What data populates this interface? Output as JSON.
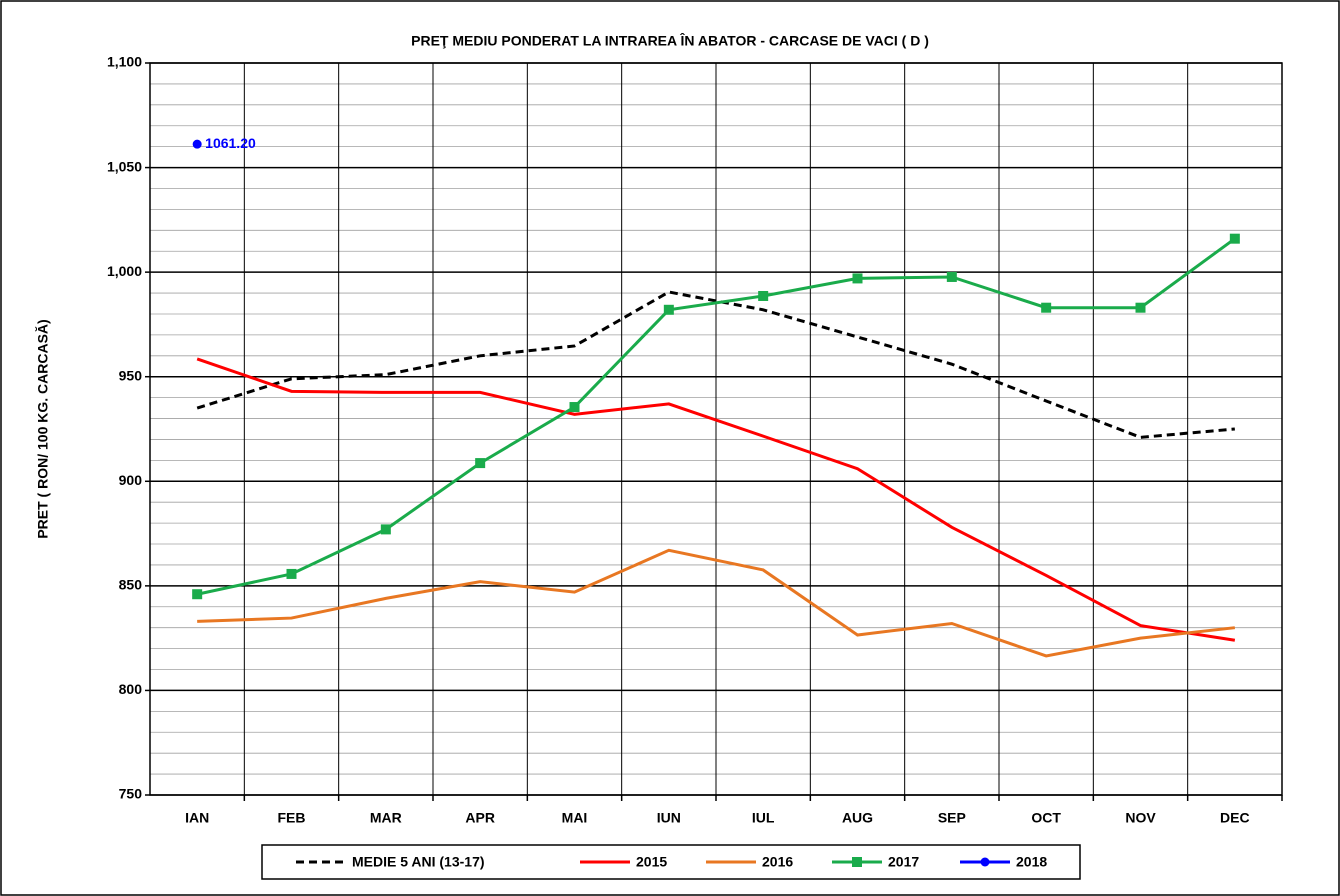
{
  "chart_data": {
    "type": "line",
    "title": "PREŢ MEDIU PONDERAT LA INTRAREA ÎN ABATOR - CARCASE DE VACI ( D )",
    "y_label": "PRET ( RON/ 100 KG. CARCASĂ)",
    "categories": [
      "IAN",
      "FEB",
      "MAR",
      "APR",
      "MAI",
      "IUN",
      "IUL",
      "AUG",
      "SEP",
      "OCT",
      "NOV",
      "DEC"
    ],
    "series": [
      {
        "name": "MEDIE 5 ANI (13-17)",
        "color": "#000000",
        "dash": true,
        "values": [
          935,
          949,
          951,
          960,
          964.7,
          990.5,
          982,
          969,
          956,
          938.4,
          921,
          925
        ]
      },
      {
        "name": "2015",
        "color": "#ff0000",
        "values": [
          958.5,
          943,
          942.5,
          942.5,
          932,
          937,
          921.6,
          906,
          878,
          855,
          831,
          824
        ]
      },
      {
        "name": "2016",
        "color": "#e87722",
        "values": [
          833,
          834.6,
          844,
          852,
          847,
          867,
          857.6,
          826.5,
          832,
          816.5,
          825,
          830
        ]
      },
      {
        "name": "2017",
        "color": "#1aab4b",
        "marker": "square",
        "values": [
          846,
          855.7,
          877,
          908.7,
          935.5,
          982,
          988.6,
          997,
          997.7,
          983,
          983,
          1016
        ]
      },
      {
        "name": "2018",
        "color": "#0000ff",
        "marker": "circle",
        "values": [
          1061.2,
          null,
          null,
          null,
          null,
          null,
          null,
          null,
          null,
          null,
          null,
          null
        ],
        "value_labels": [
          "1061.20",
          null,
          null,
          null,
          null,
          null,
          null,
          null,
          null,
          null,
          null,
          null
        ]
      }
    ],
    "ylim": [
      750,
      1100
    ],
    "yticks": [
      750,
      800,
      850,
      900,
      950,
      {
        "value": 1000,
        "label": "1,000"
      },
      {
        "value": 1050,
        "label": "1,050"
      },
      {
        "value": 1100,
        "label": "1,100"
      }
    ],
    "minor_yticks": [
      760,
      770,
      780,
      790,
      810,
      820,
      830,
      840,
      860,
      870,
      880,
      890,
      910,
      920,
      930,
      940,
      960,
      970,
      980,
      990,
      1010,
      1020,
      1030,
      1040,
      1060,
      1070,
      1080,
      1090
    ],
    "grid": true,
    "legend": "bottom"
  }
}
